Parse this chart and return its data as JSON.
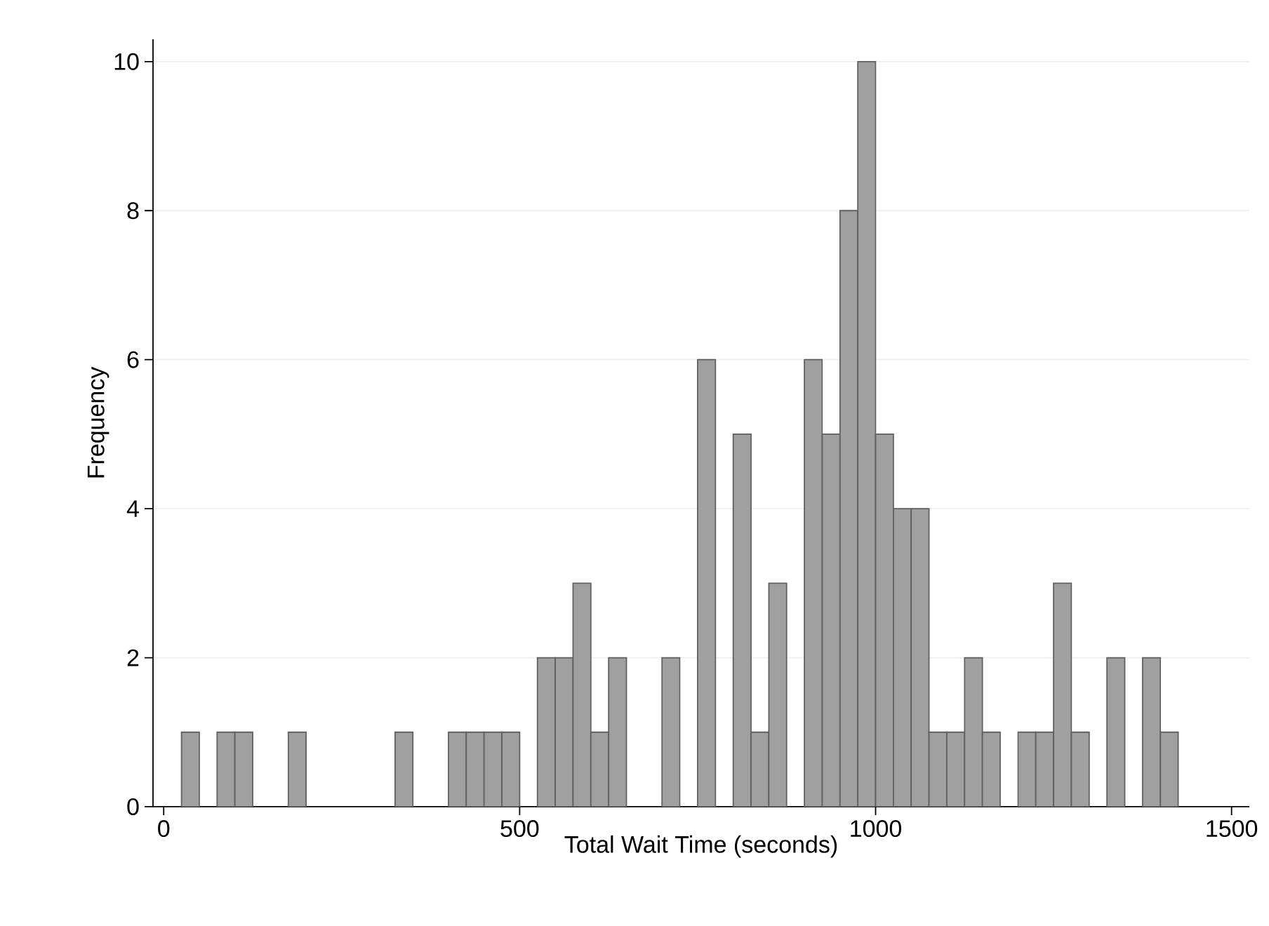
{
  "chart_data": {
    "type": "histogram",
    "xlabel": "Total Wait Time (seconds)",
    "ylabel": "Frequency",
    "bins": [
      25,
      50,
      75,
      100,
      125,
      150,
      175,
      200,
      225,
      250,
      275,
      300,
      325,
      350,
      375,
      400,
      425,
      450,
      475,
      500,
      525,
      550,
      575,
      600,
      625,
      650,
      675,
      700,
      725,
      750,
      775,
      800,
      825,
      850,
      875,
      900,
      925,
      950,
      975,
      1000,
      1025,
      1050,
      1075,
      1100,
      1125,
      1150,
      1175,
      1200,
      1225,
      1250,
      1275,
      1300,
      1325,
      1350,
      1375,
      1400,
      1425
    ],
    "values": [
      1,
      0,
      1,
      1,
      0,
      0,
      1,
      0,
      0,
      0,
      0,
      0,
      1,
      0,
      0,
      1,
      1,
      1,
      1,
      0,
      2,
      2,
      3,
      1,
      2,
      0,
      0,
      2,
      0,
      6,
      0,
      5,
      1,
      3,
      0,
      6,
      5,
      8,
      10,
      5,
      4,
      4,
      1,
      1,
      2,
      1,
      0,
      1,
      1,
      3,
      1,
      0,
      2,
      0,
      2,
      1
    ],
    "color": "#a0a0a0",
    "xlim": [
      -15,
      1525
    ],
    "ylim": [
      0,
      10.3
    ],
    "xticks": [
      0,
      500,
      1000,
      1500
    ],
    "yticks": [
      0,
      2,
      4,
      6,
      8,
      10
    ],
    "grid": "y"
  }
}
